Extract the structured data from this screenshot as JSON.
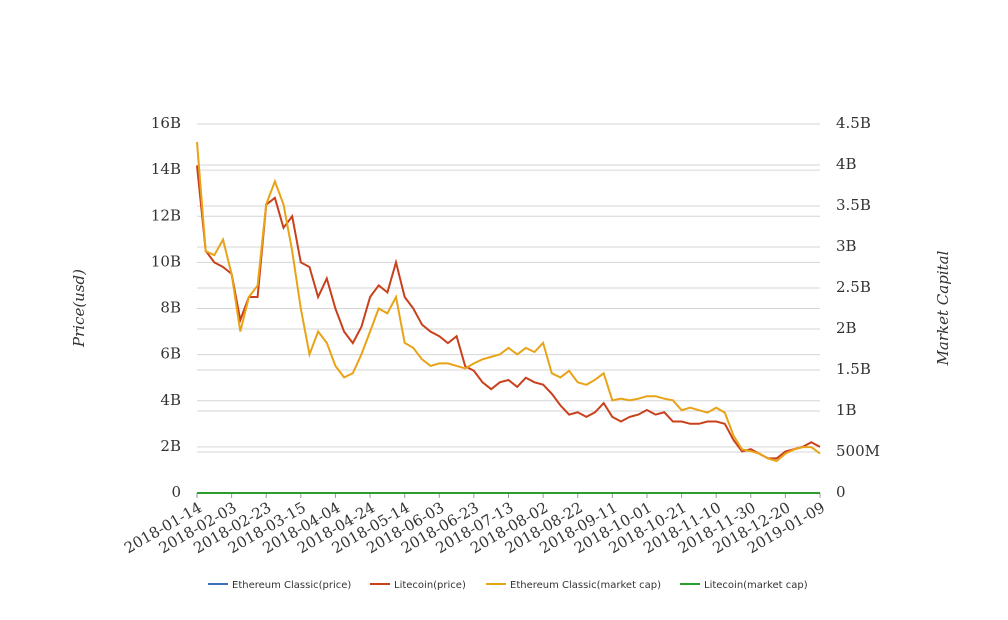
{
  "chart_data": {
    "type": "line",
    "y_label": "Price(usd)",
    "y2_label": "Market Capital",
    "x": [
      "2018-01-14",
      "2018-01-19",
      "2018-01-24",
      "2018-01-29",
      "2018-02-03",
      "2018-02-08",
      "2018-02-13",
      "2018-02-18",
      "2018-02-23",
      "2018-02-28",
      "2018-03-05",
      "2018-03-10",
      "2018-03-15",
      "2018-03-20",
      "2018-03-25",
      "2018-03-30",
      "2018-04-04",
      "2018-04-09",
      "2018-04-14",
      "2018-04-19",
      "2018-04-24",
      "2018-04-29",
      "2018-05-04",
      "2018-05-09",
      "2018-05-14",
      "2018-05-19",
      "2018-05-24",
      "2018-05-29",
      "2018-06-03",
      "2018-06-08",
      "2018-06-13",
      "2018-06-18",
      "2018-06-23",
      "2018-06-28",
      "2018-07-03",
      "2018-07-08",
      "2018-07-13",
      "2018-07-18",
      "2018-07-23",
      "2018-07-28",
      "2018-08-02",
      "2018-08-07",
      "2018-08-12",
      "2018-08-17",
      "2018-08-22",
      "2018-08-27",
      "2018-09-01",
      "2018-09-06",
      "2018-09-11",
      "2018-09-16",
      "2018-09-21",
      "2018-09-26",
      "2018-10-01",
      "2018-10-06",
      "2018-10-11",
      "2018-10-16",
      "2018-10-21",
      "2018-10-26",
      "2018-10-31",
      "2018-11-05",
      "2018-11-10",
      "2018-11-15",
      "2018-11-20",
      "2018-11-25",
      "2018-11-30",
      "2018-12-05",
      "2018-12-10",
      "2018-12-15",
      "2018-12-20",
      "2018-12-25",
      "2018-12-30",
      "2019-01-04",
      "2019-01-09"
    ],
    "xlim": [
      "2018-01-14",
      "2019-01-09"
    ],
    "xticks": [
      "2018-01-14",
      "2018-02-03",
      "2018-02-23",
      "2018-03-15",
      "2018-04-04",
      "2018-04-24",
      "2018-05-14",
      "2018-06-03",
      "2018-06-23",
      "2018-07-13",
      "2018-08-02",
      "2018-08-22",
      "2018-09-11",
      "2018-10-01",
      "2018-10-21",
      "2018-11-10",
      "2018-11-30",
      "2018-12-20",
      "2019-01-09"
    ],
    "ylim": [
      0,
      16000000000
    ],
    "yticks": [
      0,
      {
        "value": 2000000000,
        "label": "2B"
      },
      {
        "value": 4000000000,
        "label": "4B"
      },
      {
        "value": 6000000000,
        "label": "6B"
      },
      {
        "value": 8000000000,
        "label": "8B"
      },
      {
        "value": 10000000000,
        "label": "10B"
      },
      {
        "value": 12000000000,
        "label": "12B"
      },
      {
        "value": 14000000000,
        "label": "14B"
      },
      {
        "value": 16000000000,
        "label": "16B"
      }
    ],
    "y2lim": [
      0,
      4500000000
    ],
    "y2ticks": [
      0,
      {
        "value": 500000000,
        "label": "500M"
      },
      {
        "value": 1000000000,
        "label": "1B"
      },
      {
        "value": 1500000000,
        "label": "1.5B"
      },
      {
        "value": 2000000000,
        "label": "2B"
      },
      {
        "value": 2500000000,
        "label": "2.5B"
      },
      {
        "value": 3000000000,
        "label": "3B"
      },
      {
        "value": 3500000000,
        "label": "3.5B"
      },
      {
        "value": 4000000000,
        "label": "4B"
      },
      {
        "value": 4500000000,
        "label": "4.5B"
      }
    ],
    "grid": true,
    "series": [
      {
        "name": "Ethereum Classic(price)",
        "color": "#3b6fb6",
        "values": [
          0,
          0,
          0,
          0,
          0,
          0,
          0,
          0,
          0,
          0,
          0,
          0,
          0,
          0,
          0,
          0,
          0,
          0,
          0,
          0,
          0,
          0,
          0,
          0,
          0,
          0,
          0,
          0,
          0,
          0,
          0,
          0,
          0,
          0,
          0,
          0,
          0,
          0,
          0,
          0,
          0,
          0,
          0,
          0,
          0,
          0,
          0,
          0,
          0,
          0,
          0,
          0,
          0,
          0,
          0,
          0,
          0,
          0,
          0,
          0,
          0,
          0,
          0,
          0,
          0,
          0,
          0,
          0,
          0,
          0,
          0,
          0,
          0
        ]
      },
      {
        "name": "Litecoin(price)",
        "color": "#c9401c",
        "values": [
          14200000000.0,
          10500000000.0,
          10000000000.0,
          9800000000.0,
          9500000000.0,
          7500000000.0,
          8500000000.0,
          8500000000.0,
          12500000000.0,
          12800000000.0,
          11500000000.0,
          12000000000.0,
          10000000000.0,
          9800000000.0,
          8500000000.0,
          9300000000.0,
          8000000000.0,
          7000000000.0,
          6500000000.0,
          7200000000.0,
          8500000000.0,
          9000000000.0,
          8700000000.0,
          10000000000.0,
          8500000000.0,
          8000000000.0,
          7300000000.0,
          7000000000.0,
          6800000000.0,
          6500000000.0,
          6800000000.0,
          5500000000.0,
          5300000000.0,
          4800000000.0,
          4500000000.0,
          4800000000.0,
          4900000000.0,
          4600000000.0,
          5000000000.0,
          4800000000.0,
          4700000000.0,
          4300000000.0,
          3800000000.0,
          3400000000.0,
          3500000000.0,
          3300000000.0,
          3500000000.0,
          3900000000.0,
          3300000000.0,
          3100000000.0,
          3300000000.0,
          3400000000.0,
          3600000000.0,
          3400000000.0,
          3500000000.0,
          3100000000.0,
          3100000000.0,
          3000000000.0,
          3000000000.0,
          3100000000.0,
          3100000000.0,
          3000000000.0,
          2300000000.0,
          1800000000.0,
          1900000000.0,
          1700000000.0,
          1500000000.0,
          1500000000.0,
          1800000000.0,
          1900000000.0,
          2000000000.0,
          2200000000.0,
          2000000000.0
        ]
      },
      {
        "name": "Ethereum Classic(market cap)",
        "color": "#e8a317",
        "axis": "y2",
        "values": [
          4280000000.0,
          2950000000.0,
          2900000000.0,
          3090000000.0,
          2670000000.0,
          1970000000.0,
          2390000000.0,
          2530000000.0,
          3520000000.0,
          3800000000.0,
          3520000000.0,
          2950000000.0,
          2250000000.0,
          1690000000.0,
          1970000000.0,
          1830000000.0,
          1550000000.0,
          1410000000.0,
          1460000000.0,
          1690000000.0,
          1970000000.0,
          2250000000.0,
          2190000000.0,
          2390000000.0,
          1830000000.0,
          1770000000.0,
          1630000000.0,
          1550000000.0,
          1580000000.0,
          1580000000.0,
          1550000000.0,
          1520000000.0,
          1580000000.0,
          1630000000.0,
          1660000000.0,
          1690000000.0,
          1770000000.0,
          1690000000.0,
          1770000000.0,
          1720000000.0,
          1830000000.0,
          1460000000.0,
          1410000000.0,
          1490000000.0,
          1350000000.0,
          1320000000.0,
          1380000000.0,
          1460000000.0,
          1130000000.0,
          1150000000.0,
          1130000000.0,
          1150000000.0,
          1180000000.0,
          1180000000.0,
          1150000000.0,
          1130000000.0,
          1010000000.0,
          1040000000.0,
          1010000000.0,
          980000000.0,
          1040000000.0,
          980000000.0,
          700000000.0,
          530000000.0,
          510000000.0,
          480000000.0,
          420000000.0,
          390000000.0,
          480000000.0,
          530000000.0,
          560000000.0,
          560000000.0,
          480000000.0
        ]
      },
      {
        "name": "Litecoin(market cap)",
        "color": "#2a9d2a",
        "values": [
          0,
          0,
          0,
          0,
          0,
          0,
          0,
          0,
          0,
          0,
          0,
          0,
          0,
          0,
          0,
          0,
          0,
          0,
          0,
          0,
          0,
          0,
          0,
          0,
          0,
          0,
          0,
          0,
          0,
          0,
          0,
          0,
          0,
          0,
          0,
          0,
          0,
          0,
          0,
          0,
          0,
          0,
          0,
          0,
          0,
          0,
          0,
          0,
          0,
          0,
          0,
          0,
          0,
          0,
          0,
          0,
          0,
          0,
          0,
          0,
          0,
          0,
          0,
          0,
          0,
          0,
          0,
          0,
          0,
          0,
          0,
          0,
          0
        ]
      }
    ]
  }
}
